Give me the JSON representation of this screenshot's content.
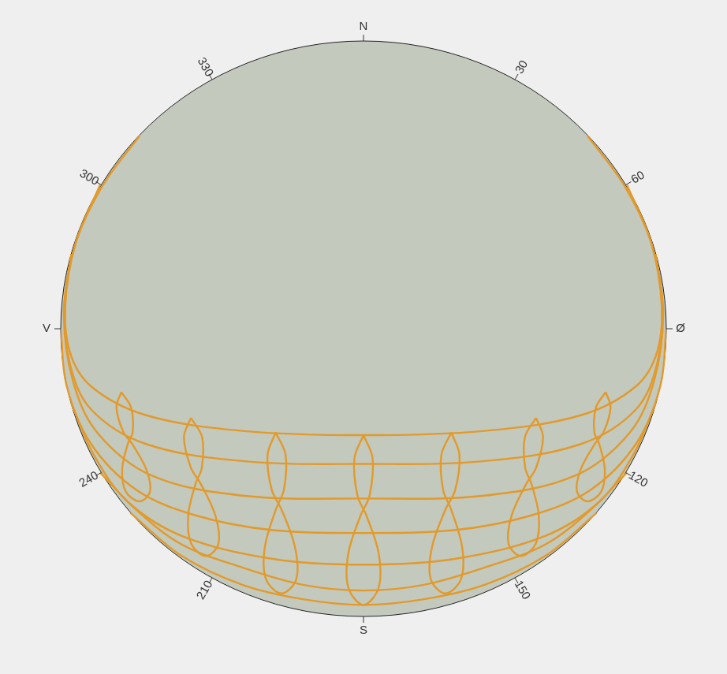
{
  "chart_data": {
    "type": "line",
    "xlim": [
      -1,
      1
    ],
    "ylim": [
      -1,
      1
    ],
    "grid": false,
    "tick_labels": false,
    "azimuth_ticks": [
      {
        "value": 0,
        "label": "N"
      },
      30,
      60,
      {
        "value": 90,
        "label": "Ø"
      },
      120,
      150,
      {
        "value": 180,
        "label": "S"
      },
      210,
      240,
      {
        "value": 270,
        "label": "V"
      },
      300,
      330
    ],
    "series": [
      {
        "color": "#e29a2b",
        "x": [
          0.74,
          0.86,
          0.95,
          0.985,
          0.97,
          0.9,
          0.72,
          0.4,
          0,
          -0.4,
          -0.72,
          -0.9,
          -0.97,
          -0.985,
          -0.95,
          -0.86,
          -0.74
        ],
        "y": [
          0.67,
          0.5,
          0.3,
          0.1,
          -0.08,
          -0.2,
          -0.3,
          -0.355,
          -0.37,
          -0.355,
          -0.3,
          -0.2,
          -0.08,
          0.1,
          0.3,
          0.5,
          0.67
        ]
      },
      {
        "color": "#e29a2b",
        "x": [
          0.87,
          0.95,
          0.985,
          0.97,
          0.9,
          0.72,
          0.4,
          0,
          -0.4,
          -0.72,
          -0.9,
          -0.97,
          -0.985,
          -0.95,
          -0.87
        ],
        "y": [
          0.5,
          0.3,
          0.08,
          -0.12,
          -0.28,
          -0.4,
          -0.46,
          -0.47,
          -0.46,
          -0.4,
          -0.28,
          -0.12,
          0.08,
          0.3,
          0.5
        ]
      },
      {
        "color": "#e29a2b",
        "x": [
          0.965,
          0.99,
          0.96,
          0.88,
          0.7,
          0.4,
          0,
          -0.4,
          -0.7,
          -0.88,
          -0.96,
          -0.99,
          -0.965
        ],
        "y": [
          0.26,
          0.05,
          -0.18,
          -0.36,
          -0.51,
          -0.58,
          -0.59,
          -0.58,
          -0.51,
          -0.36,
          -0.18,
          0.05,
          0.26
        ]
      },
      {
        "color": "#e29a2b",
        "x": [
          1,
          0.98,
          0.9,
          0.75,
          0.55,
          0.3,
          0,
          -0.3,
          -0.55,
          -0.75,
          -0.9,
          -0.98,
          -1
        ],
        "y": [
          0,
          -0.2,
          -0.4,
          -0.56,
          -0.65,
          -0.7,
          -0.71,
          -0.7,
          -0.65,
          -0.56,
          -0.4,
          -0.2,
          0
        ]
      },
      {
        "color": "#e29a2b",
        "x": [
          0.965,
          0.89,
          0.78,
          0.6,
          0.3,
          0,
          -0.3,
          -0.6,
          -0.78,
          -0.89,
          -0.965
        ],
        "y": [
          -0.26,
          -0.44,
          -0.6,
          -0.72,
          -0.8,
          -0.82,
          -0.8,
          -0.72,
          -0.6,
          -0.44,
          -0.26
        ]
      },
      {
        "color": "#e29a2b",
        "x": [
          0.87,
          0.75,
          0.6,
          0.4,
          0.2,
          0,
          -0.2,
          -0.4,
          -0.6,
          -0.75,
          -0.87
        ],
        "y": [
          -0.5,
          -0.63,
          -0.75,
          -0.83,
          -0.89,
          -0.91,
          -0.89,
          -0.83,
          -0.75,
          -0.63,
          -0.5
        ]
      },
      {
        "color": "#e29a2b",
        "x": [
          0.77,
          0.6,
          0.4,
          0.2,
          0,
          -0.2,
          -0.4,
          -0.6,
          -0.77
        ],
        "y": [
          -0.64,
          -0.79,
          -0.89,
          -0.94,
          -0.96,
          -0.94,
          -0.89,
          -0.79,
          -0.64
        ]
      },
      {
        "color": "#e29a2b",
        "x": [
          0,
          0.03,
          0.02,
          -0.01,
          -0.05,
          -0.05,
          0,
          0.05,
          0.05,
          0.01,
          -0.02,
          -0.03,
          0
        ],
        "y": [
          -0.37,
          -0.45,
          -0.58,
          -0.65,
          -0.78,
          -0.9,
          -0.96,
          -0.9,
          -0.78,
          -0.65,
          -0.58,
          -0.45,
          -0.37
        ]
      },
      {
        "color": "#e29a2b",
        "x": [
          0.29,
          0.317,
          0.303,
          0.27,
          0.226,
          0.222,
          0.27,
          0.322,
          0.326,
          0.29,
          0.263,
          0.257,
          0.29
        ],
        "y": [
          -0.36,
          -0.44,
          -0.56,
          -0.63,
          -0.76,
          -0.87,
          -0.92,
          -0.87,
          -0.76,
          -0.63,
          -0.56,
          -0.44,
          -0.36
        ]
      },
      {
        "color": "#e29a2b",
        "x": [
          -0.29,
          -0.317,
          -0.303,
          -0.27,
          -0.226,
          -0.222,
          -0.27,
          -0.322,
          -0.326,
          -0.29,
          -0.263,
          -0.257,
          -0.29
        ],
        "y": [
          -0.36,
          -0.44,
          -0.56,
          -0.63,
          -0.76,
          -0.87,
          -0.92,
          -0.87,
          -0.76,
          -0.63,
          -0.56,
          -0.44,
          -0.36
        ]
      },
      {
        "color": "#e29a2b",
        "x": [
          0.57,
          0.593,
          0.57,
          0.537,
          0.489,
          0.479,
          0.52,
          0.569,
          0.579,
          0.555,
          0.534,
          0.533,
          0.57
        ],
        "y": [
          -0.31,
          -0.377,
          -0.483,
          -0.54,
          -0.65,
          -0.747,
          -0.79,
          -0.747,
          -0.65,
          -0.54,
          -0.483,
          -0.377,
          -0.31
        ]
      },
      {
        "color": "#e29a2b",
        "x": [
          -0.57,
          -0.593,
          -0.57,
          -0.537,
          -0.489,
          -0.479,
          -0.52,
          -0.569,
          -0.579,
          -0.555,
          -0.534,
          -0.533,
          -0.57
        ],
        "y": [
          -0.31,
          -0.377,
          -0.483,
          -0.54,
          -0.65,
          -0.747,
          -0.79,
          -0.747,
          -0.65,
          -0.54,
          -0.483,
          -0.377,
          -0.31
        ]
      },
      {
        "color": "#e29a2b",
        "x": [
          0.8,
          0.816,
          0.794,
          0.763,
          0.717,
          0.705,
          0.74,
          0.785,
          0.797,
          0.779,
          0.762,
          0.768,
          0.8
        ],
        "y": [
          -0.22,
          -0.273,
          -0.357,
          -0.402,
          -0.49,
          -0.566,
          -0.6,
          -0.566,
          -0.49,
          -0.402,
          -0.357,
          -0.273,
          -0.22
        ]
      },
      {
        "color": "#e29a2b",
        "x": [
          -0.8,
          -0.816,
          -0.794,
          -0.763,
          -0.717,
          -0.705,
          -0.74,
          -0.785,
          -0.797,
          -0.779,
          -0.762,
          -0.768,
          -0.8
        ],
        "y": [
          -0.22,
          -0.273,
          -0.357,
          -0.402,
          -0.49,
          -0.566,
          -0.6,
          -0.566,
          -0.49,
          -0.402,
          -0.357,
          -0.273,
          -0.22
        ]
      }
    ]
  }
}
